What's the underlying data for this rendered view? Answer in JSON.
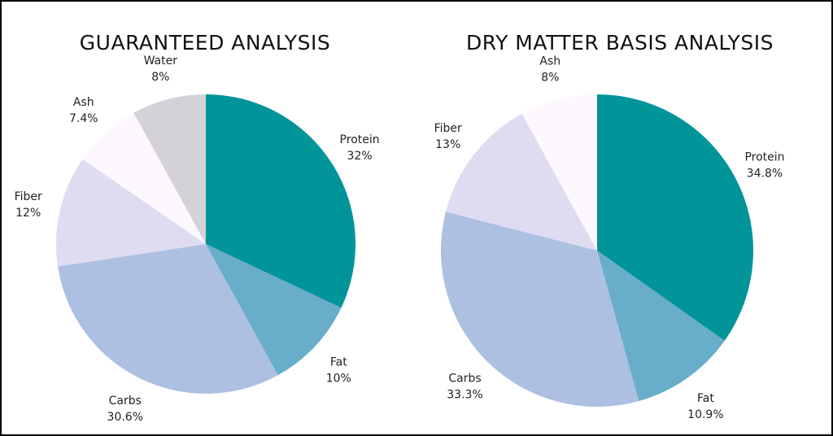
{
  "chart_data": [
    {
      "type": "pie",
      "title": "GUARANTEED ANALYSIS",
      "slices": [
        {
          "label": "Protein",
          "value": 32,
          "display": "32%",
          "color": "#019499"
        },
        {
          "label": "Fat",
          "value": 10,
          "display": "10%",
          "color": "#68adc9"
        },
        {
          "label": "Carbs",
          "value": 30.6,
          "display": "30.6%",
          "color": "#adc0e2"
        },
        {
          "label": "Fiber",
          "value": 12,
          "display": "12%",
          "color": "#dfdcf2"
        },
        {
          "label": "Ash",
          "value": 7.4,
          "display": "7.4%",
          "color": "#fdf8fd"
        },
        {
          "label": "Water",
          "value": 8,
          "display": "8%",
          "color": "#d4d1d8"
        }
      ],
      "start_angle": "12 o'clock",
      "direction": "clockwise"
    },
    {
      "type": "pie",
      "title": "DRY MATTER BASIS ANALYSIS",
      "slices": [
        {
          "label": "Protein",
          "value": 34.8,
          "display": "34.8%",
          "color": "#019499"
        },
        {
          "label": "Fat",
          "value": 10.9,
          "display": "10.9%",
          "color": "#68adc9"
        },
        {
          "label": "Carbs",
          "value": 33.3,
          "display": "33.3%",
          "color": "#adc0e2"
        },
        {
          "label": "Fiber",
          "value": 13,
          "display": "13%",
          "color": "#dfdcf2"
        },
        {
          "label": "Ash",
          "value": 8,
          "display": "8%",
          "color": "#fdf8fd"
        }
      ],
      "start_angle": "12 o'clock",
      "direction": "clockwise"
    }
  ],
  "colors": {
    "background": "#ffffff",
    "border": "#000000",
    "label_text": "#222222"
  }
}
